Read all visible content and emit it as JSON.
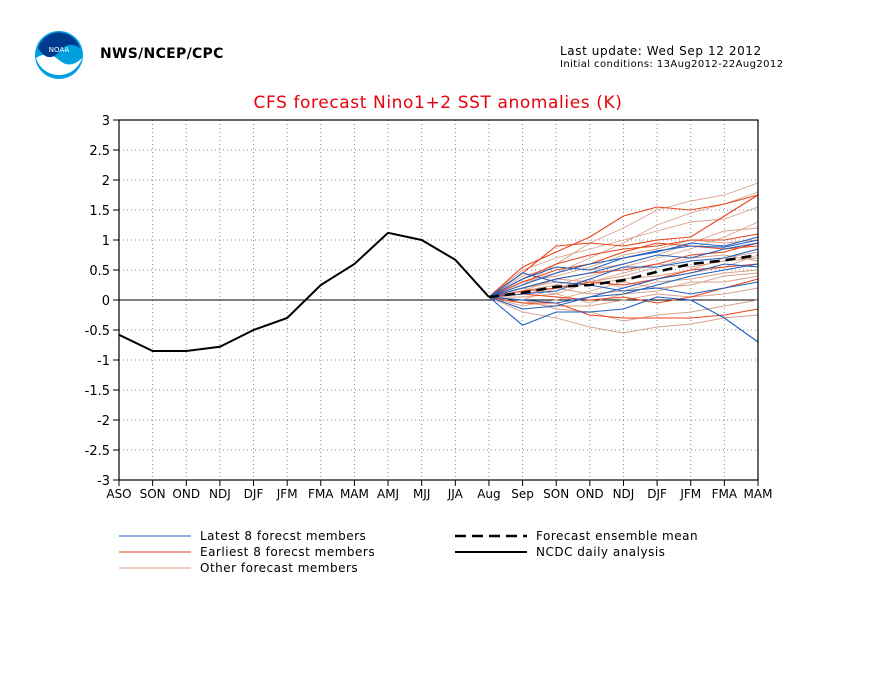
{
  "header": {
    "agency": "NWS/NCEP/CPC",
    "last_update": "Last update: Wed Sep 12 2012",
    "initial_conditions": "Initial conditions: 13Aug2012-22Aug2012",
    "logo_text": "NOAA"
  },
  "chart_data": {
    "type": "line",
    "title": "CFS forecast Nino1+2 SST anomalies (K)",
    "xlabel": "",
    "ylabel": "",
    "ylim": [
      -3,
      3
    ],
    "yticks": [
      "3",
      "2.5",
      "2",
      "1.5",
      "1",
      "0.5",
      "0",
      "-0.5",
      "-1",
      "-1.5",
      "-2",
      "-2.5",
      "-3"
    ],
    "yticks_values": [
      3,
      2.5,
      2,
      1.5,
      1,
      0.5,
      0,
      -0.5,
      -1,
      -1.5,
      -2,
      -2.5,
      -3
    ],
    "categories": [
      "ASO",
      "SON",
      "OND",
      "NDJ",
      "DJF",
      "JFM",
      "FMA",
      "MAM",
      "AMJ",
      "MJJ",
      "JJA",
      "Aug",
      "Sep",
      "SON",
      "OND",
      "NDJ",
      "DJF",
      "JFM",
      "FMA",
      "MAM"
    ],
    "grid": true,
    "colors": {
      "latest": "#1f5fbf",
      "earliest": "#e8451c",
      "other": "#d9a08a",
      "title": "#e8000b",
      "observed": "#000000"
    },
    "legend": [
      {
        "label": "Latest 8 forecst members",
        "style": "latest"
      },
      {
        "label": "Earliest 8 forecst members",
        "style": "earliest"
      },
      {
        "label": "Other forecast members",
        "style": "other"
      },
      {
        "label": "Forecast ensemble mean",
        "style": "mean"
      },
      {
        "label": "NCDC daily analysis",
        "style": "observed"
      }
    ],
    "observed": {
      "x": [
        0,
        1,
        2,
        3,
        4,
        5,
        6,
        7,
        8,
        9,
        10,
        11
      ],
      "values": [
        -0.58,
        -0.85,
        -0.85,
        -0.78,
        -0.5,
        -0.3,
        0.25,
        0.6,
        1.12,
        1.0,
        0.67,
        0.05
      ]
    },
    "ensemble_mean": {
      "x": [
        11,
        12,
        13,
        14,
        15,
        16,
        17,
        18,
        19
      ],
      "values": [
        0.05,
        0.12,
        0.22,
        0.25,
        0.33,
        0.47,
        0.6,
        0.66,
        0.75
      ]
    },
    "members": [
      {
        "group": "latest",
        "values": [
          0.05,
          -0.42,
          -0.2,
          -0.2,
          -0.15,
          0.05,
          0.0,
          -0.3,
          -0.7
        ]
      },
      {
        "group": "latest",
        "values": [
          0.05,
          0.35,
          0.55,
          0.5,
          0.7,
          0.82,
          0.9,
          0.88,
          1.0
        ]
      },
      {
        "group": "latest",
        "values": [
          0.05,
          0.2,
          0.35,
          0.45,
          0.6,
          0.75,
          0.7,
          0.85,
          0.95
        ]
      },
      {
        "group": "latest",
        "values": [
          0.05,
          -0.15,
          -0.1,
          0.05,
          0.1,
          0.25,
          0.4,
          0.5,
          0.6
        ]
      },
      {
        "group": "latest",
        "values": [
          0.05,
          0.45,
          0.3,
          0.25,
          0.15,
          0.2,
          0.1,
          0.2,
          0.3
        ]
      },
      {
        "group": "latest",
        "values": [
          0.05,
          0.1,
          0.15,
          0.35,
          0.55,
          0.55,
          0.65,
          0.7,
          0.85
        ]
      },
      {
        "group": "latest",
        "values": [
          0.05,
          0.0,
          -0.05,
          0.05,
          0.2,
          0.35,
          0.45,
          0.6,
          0.55
        ]
      },
      {
        "group": "latest",
        "values": [
          0.05,
          0.25,
          0.45,
          0.6,
          0.7,
          0.8,
          0.95,
          0.9,
          1.05
        ]
      },
      {
        "group": "earliest",
        "values": [
          0.05,
          0.55,
          0.8,
          1.05,
          1.4,
          1.55,
          1.5,
          1.6,
          1.75
        ]
      },
      {
        "group": "earliest",
        "values": [
          0.05,
          0.45,
          0.9,
          0.95,
          0.9,
          1.0,
          1.05,
          1.4,
          1.75
        ]
      },
      {
        "group": "earliest",
        "values": [
          0.05,
          -0.05,
          -0.05,
          -0.25,
          -0.3,
          -0.3,
          -0.3,
          -0.25,
          -0.15
        ]
      },
      {
        "group": "earliest",
        "values": [
          0.05,
          0.3,
          0.5,
          0.6,
          0.8,
          0.95,
          0.9,
          0.85,
          0.9
        ]
      },
      {
        "group": "earliest",
        "values": [
          0.05,
          0.2,
          0.35,
          0.45,
          0.5,
          0.6,
          0.75,
          0.8,
          0.95
        ]
      },
      {
        "group": "earliest",
        "values": [
          0.05,
          0.15,
          0.2,
          0.3,
          0.25,
          0.35,
          0.5,
          0.55,
          0.6
        ]
      },
      {
        "group": "earliest",
        "values": [
          0.05,
          0.1,
          0.05,
          0.0,
          0.05,
          -0.05,
          0.05,
          0.2,
          0.35
        ]
      },
      {
        "group": "earliest",
        "values": [
          0.05,
          0.35,
          0.6,
          0.75,
          0.85,
          0.9,
          1.0,
          1.0,
          1.1
        ]
      },
      {
        "group": "other",
        "values": [
          0.05,
          0.25,
          0.6,
          0.95,
          1.2,
          1.5,
          1.65,
          1.75,
          1.95
        ]
      },
      {
        "group": "other",
        "values": [
          0.05,
          0.3,
          0.45,
          0.7,
          0.95,
          1.25,
          1.45,
          1.6,
          1.8
        ]
      },
      {
        "group": "other",
        "values": [
          0.05,
          -0.2,
          -0.3,
          -0.45,
          -0.55,
          -0.45,
          -0.4,
          -0.3,
          -0.25
        ]
      },
      {
        "group": "other",
        "values": [
          0.05,
          0.0,
          -0.15,
          -0.2,
          -0.35,
          -0.25,
          -0.2,
          -0.1,
          0.0
        ]
      },
      {
        "group": "other",
        "values": [
          0.05,
          0.15,
          0.25,
          0.4,
          0.55,
          0.7,
          0.85,
          1.05,
          1.3
        ]
      },
      {
        "group": "other",
        "values": [
          0.05,
          0.1,
          0.2,
          0.1,
          0.15,
          0.3,
          0.35,
          0.45,
          0.5
        ]
      },
      {
        "group": "other",
        "values": [
          0.05,
          0.2,
          0.3,
          0.25,
          0.35,
          0.4,
          0.5,
          0.7,
          0.8
        ]
      },
      {
        "group": "other",
        "values": [
          0.05,
          -0.1,
          0.0,
          0.15,
          0.3,
          0.2,
          0.25,
          0.4,
          0.45
        ]
      },
      {
        "group": "other",
        "values": [
          0.05,
          0.4,
          0.55,
          0.5,
          0.6,
          0.75,
          0.95,
          1.15,
          1.2
        ]
      },
      {
        "group": "other",
        "values": [
          0.05,
          0.05,
          0.1,
          0.3,
          0.45,
          0.6,
          0.55,
          0.65,
          0.7
        ]
      },
      {
        "group": "other",
        "values": [
          0.05,
          -0.05,
          -0.1,
          -0.1,
          0.0,
          0.1,
          0.05,
          0.1,
          0.2
        ]
      },
      {
        "group": "other",
        "values": [
          0.05,
          0.3,
          0.4,
          0.55,
          0.75,
          0.85,
          1.0,
          0.95,
          1.0
        ]
      },
      {
        "group": "other",
        "values": [
          0.05,
          0.15,
          0.35,
          0.3,
          0.4,
          0.55,
          0.7,
          0.75,
          0.65
        ]
      },
      {
        "group": "other",
        "values": [
          0.05,
          0.2,
          0.1,
          -0.05,
          0.1,
          0.15,
          0.3,
          0.3,
          0.4
        ]
      },
      {
        "group": "other",
        "values": [
          0.05,
          0.5,
          0.7,
          0.85,
          1.0,
          1.15,
          1.3,
          1.35,
          1.55
        ]
      },
      {
        "group": "other",
        "values": [
          0.05,
          0.0,
          0.2,
          0.35,
          0.2,
          0.35,
          0.45,
          0.55,
          0.75
        ]
      }
    ]
  }
}
